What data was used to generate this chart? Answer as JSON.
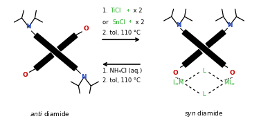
{
  "background": "#ffffff",
  "black": "#000000",
  "green": "#22aa22",
  "blue": "#3355cc",
  "red": "#cc0000",
  "figsize": [
    3.77,
    1.75
  ],
  "dpi": 100,
  "xlim": [
    0,
    3.77
  ],
  "ylim": [
    0,
    1.75
  ]
}
